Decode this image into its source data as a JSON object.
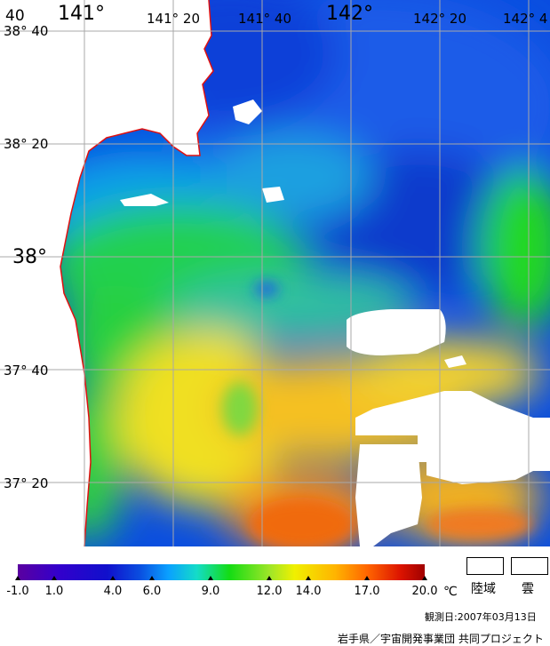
{
  "map": {
    "lat_labels": [
      "38° 40",
      "38° 20",
      "38°",
      "37° 40",
      "37° 20"
    ],
    "lon_labels": [
      "141°",
      "141° 20",
      "141° 40",
      "142°",
      "142° 20",
      "142° 4"
    ],
    "corner_label": "40"
  },
  "legend": {
    "ticks": [
      "-1.0",
      "1.0",
      "4.0",
      "6.0",
      "9.0",
      "12.0",
      "14.0",
      "17.0",
      "20.0"
    ],
    "unit": "℃",
    "land_label": "陸域",
    "cloud_label": "雲",
    "colors": [
      "#5a00a0",
      "#3300cc",
      "#1010cc",
      "#0a4ee0",
      "#0aa0ff",
      "#14dcc8",
      "#14dc14",
      "#a0e628",
      "#f0f000",
      "#ffb400",
      "#ff6400",
      "#dc1400",
      "#a00000"
    ]
  },
  "observation": "観測日:2007年03月13日",
  "credit": "岩手県／宇宙開発事業団 共同プロジェクト"
}
